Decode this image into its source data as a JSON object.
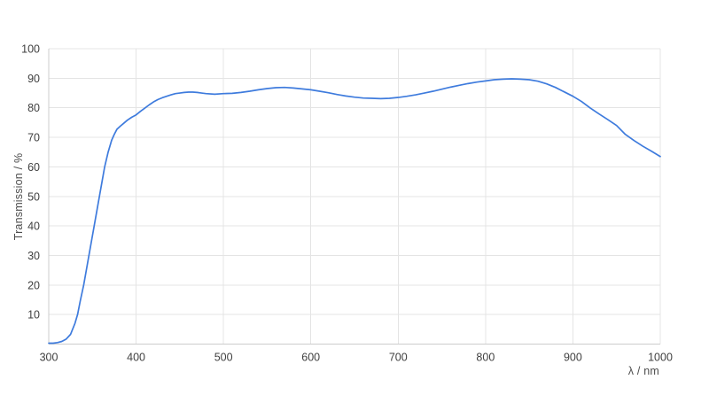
{
  "chart": {
    "background_color": "#ffffff",
    "line_color": "#3e7bdd",
    "grid_color": "#e4e4e4",
    "axis_line_color": "#cccccc",
    "tick_label_color": "#404040",
    "axis_title_color": "#4d4d4d"
  },
  "chart_data": {
    "type": "line",
    "title": "",
    "xlabel": "λ / nm",
    "ylabel": "Transmission / %",
    "xlim": [
      300,
      1000
    ],
    "ylim": [
      0,
      100
    ],
    "x_ticks": [
      300,
      400,
      500,
      600,
      700,
      800,
      900,
      1000
    ],
    "y_ticks": [
      10,
      20,
      30,
      40,
      50,
      60,
      70,
      80,
      90,
      100
    ],
    "grid": true,
    "legend": "none",
    "series": [
      {
        "name": "Transmission",
        "x": [
          300,
          305,
          310,
          315,
          320,
          325,
          330,
          333,
          336,
          340,
          343,
          346,
          349,
          352,
          355,
          358,
          361,
          364,
          368,
          372,
          375,
          378,
          382,
          386,
          390,
          395,
          400,
          405,
          410,
          415,
          420,
          425,
          430,
          435,
          440,
          445,
          450,
          455,
          460,
          465,
          470,
          475,
          480,
          490,
          500,
          510,
          520,
          530,
          540,
          550,
          560,
          570,
          580,
          590,
          600,
          610,
          620,
          630,
          640,
          650,
          660,
          670,
          680,
          690,
          700,
          710,
          720,
          730,
          740,
          750,
          760,
          770,
          780,
          790,
          800,
          810,
          820,
          830,
          840,
          850,
          860,
          870,
          880,
          890,
          900,
          910,
          920,
          930,
          940,
          950,
          960,
          970,
          980,
          990,
          1000
        ],
        "y": [
          0.3,
          0.3,
          0.5,
          0.9,
          1.7,
          3.3,
          7,
          10,
          14.5,
          20,
          25,
          30,
          35,
          40,
          45,
          50,
          55,
          60,
          65,
          69,
          71,
          72.7,
          73.8,
          74.8,
          75.8,
          76.8,
          77.6,
          78.8,
          79.9,
          81,
          82,
          82.8,
          83.4,
          83.9,
          84.4,
          84.8,
          85.0,
          85.2,
          85.3,
          85.3,
          85.2,
          85.0,
          84.8,
          84.6,
          84.8,
          84.9,
          85.2,
          85.6,
          86.1,
          86.5,
          86.8,
          86.9,
          86.7,
          86.4,
          86.1,
          85.6,
          85.1,
          84.5,
          84.0,
          83.6,
          83.3,
          83.2,
          83.1,
          83.2,
          83.5,
          83.9,
          84.4,
          85.0,
          85.6,
          86.3,
          87.0,
          87.6,
          88.2,
          88.7,
          89.1,
          89.5,
          89.7,
          89.8,
          89.7,
          89.5,
          89.0,
          88.1,
          86.9,
          85.4,
          83.9,
          82.1,
          79.9,
          77.9,
          76.0,
          74.0,
          71.0,
          68.9,
          67.0,
          65.3,
          63.5
        ]
      }
    ]
  }
}
